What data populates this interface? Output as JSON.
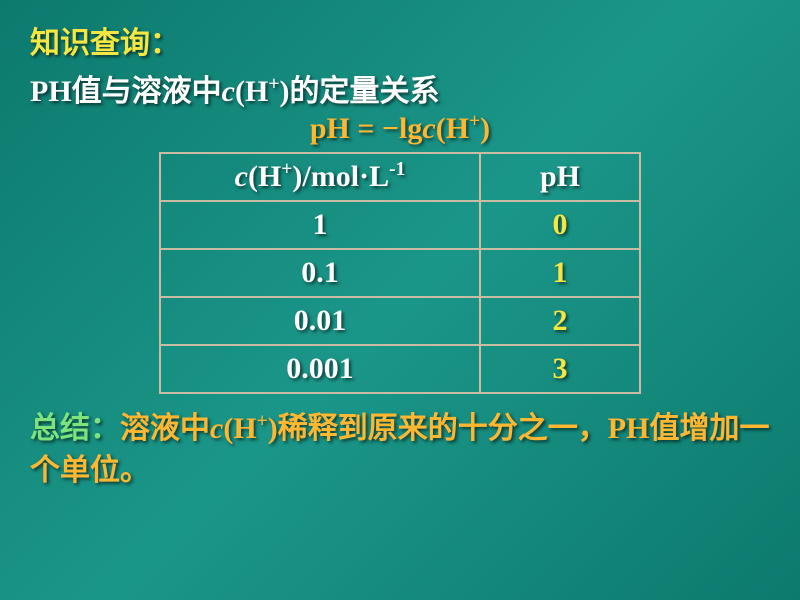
{
  "colors": {
    "yellow": "#f5e642",
    "white": "#ffffff",
    "orange": "#ffb732",
    "green": "#7de37d",
    "cream": "#ffffff",
    "bg_start": "#0d7a6e",
    "bg_mid": "#1a9688"
  },
  "title": "知识查询：",
  "subtitle_parts": {
    "p1": "PH值与溶液中",
    "c": "c",
    "p2": "(H",
    "plus": "+",
    "p3": ")的定量关系"
  },
  "formula_parts": {
    "p1": "pH = ",
    "minus": "−",
    "p2": "lg",
    "c": "c",
    "p3": "(H",
    "plus": "+",
    "p4": ")"
  },
  "table": {
    "header": {
      "conc_parts": {
        "c": "c",
        "p1": "(H",
        "plus": "+",
        "p2": ")/mol·L",
        "neg1": "-1"
      },
      "ph": "pH"
    },
    "rows": [
      {
        "conc": "1",
        "ph": "0"
      },
      {
        "conc": "0.1",
        "ph": "1"
      },
      {
        "conc": "0.01",
        "ph": "2"
      },
      {
        "conc": "0.001",
        "ph": "3"
      }
    ]
  },
  "summary_parts": {
    "s1": "总结：",
    "s2": "溶液中",
    "c": "c",
    "p2": "(H",
    "plus": "+",
    "p3": ")",
    "s3": "稀释到原来的十分之一，PH值增加一个单位。"
  }
}
